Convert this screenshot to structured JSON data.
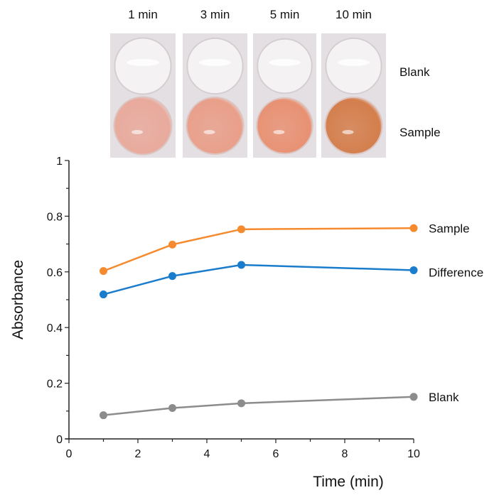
{
  "photo": {
    "time_labels": [
      "1 min",
      "3 min",
      "5 min",
      "10 min"
    ],
    "row_labels": [
      "Blank",
      "Sample"
    ],
    "sample_colors": [
      "#e8aa9c",
      "#e99f8a",
      "#e89173",
      "#d47e4c"
    ],
    "blank_color": "#ece8e8"
  },
  "chart_data": {
    "type": "line",
    "xlabel": "Time (min)",
    "ylabel": "Absorbance",
    "xlim": [
      0,
      10
    ],
    "ylim": [
      0,
      1
    ],
    "xticks": [
      "0",
      "2",
      "4",
      "6",
      "8",
      "10"
    ],
    "yticks": [
      "0",
      "0.2",
      "0.4",
      "0.6",
      "0.8",
      "1"
    ],
    "x": [
      1,
      3,
      5,
      10
    ],
    "series": [
      {
        "name": "Sample",
        "color": "#f58a2e",
        "values": [
          0.603,
          0.698,
          0.753,
          0.757
        ]
      },
      {
        "name": "Difference",
        "color": "#1a7ccc",
        "values": [
          0.519,
          0.585,
          0.625,
          0.606
        ]
      },
      {
        "name": "Blank",
        "color": "#8c8c8c",
        "values": [
          0.085,
          0.111,
          0.128,
          0.151
        ]
      }
    ],
    "legend": "right-of-line-ends",
    "grid": false
  }
}
